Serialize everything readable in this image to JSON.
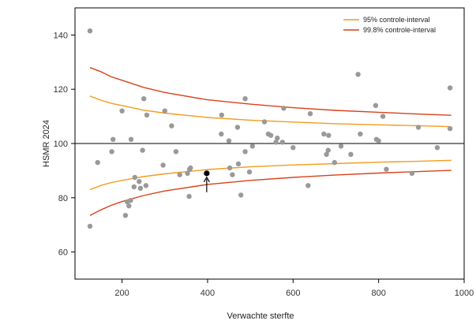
{
  "chart_data": {
    "type": "scatter",
    "title": "",
    "xlabel": "Verwachte sterfte",
    "ylabel": "HSMR 2024",
    "xlim": [
      90,
      1000
    ],
    "ylim": [
      50,
      150
    ],
    "xticks": [
      200,
      400,
      600,
      800,
      1000
    ],
    "yticks": [
      60,
      80,
      100,
      120,
      140
    ],
    "reference_line": 100,
    "legend_position": "top-right",
    "points": [
      {
        "x": 125,
        "y": 141.5
      },
      {
        "x": 125,
        "y": 69.5
      },
      {
        "x": 143,
        "y": 93
      },
      {
        "x": 176,
        "y": 97
      },
      {
        "x": 179,
        "y": 101.5
      },
      {
        "x": 200,
        "y": 112
      },
      {
        "x": 208,
        "y": 73.5
      },
      {
        "x": 212,
        "y": 78.5
      },
      {
        "x": 216,
        "y": 77
      },
      {
        "x": 220,
        "y": 79
      },
      {
        "x": 221,
        "y": 101.5
      },
      {
        "x": 228,
        "y": 84
      },
      {
        "x": 230,
        "y": 87.5
      },
      {
        "x": 240,
        "y": 86
      },
      {
        "x": 243,
        "y": 83.5
      },
      {
        "x": 248,
        "y": 97.5
      },
      {
        "x": 251,
        "y": 116.5
      },
      {
        "x": 256,
        "y": 84.5
      },
      {
        "x": 258,
        "y": 110.5
      },
      {
        "x": 296,
        "y": 92
      },
      {
        "x": 300,
        "y": 112
      },
      {
        "x": 316,
        "y": 106.5
      },
      {
        "x": 326,
        "y": 97
      },
      {
        "x": 335,
        "y": 88.5
      },
      {
        "x": 353,
        "y": 89
      },
      {
        "x": 357,
        "y": 80.5
      },
      {
        "x": 358,
        "y": 90.5
      },
      {
        "x": 360,
        "y": 91
      },
      {
        "x": 433,
        "y": 110.5
      },
      {
        "x": 432,
        "y": 103.5
      },
      {
        "x": 450,
        "y": 101
      },
      {
        "x": 452,
        "y": 91
      },
      {
        "x": 458,
        "y": 88.5
      },
      {
        "x": 470,
        "y": 106
      },
      {
        "x": 472,
        "y": 92.5
      },
      {
        "x": 478,
        "y": 81
      },
      {
        "x": 488,
        "y": 116.5
      },
      {
        "x": 488,
        "y": 97
      },
      {
        "x": 498,
        "y": 89.5
      },
      {
        "x": 505,
        "y": 99
      },
      {
        "x": 533,
        "y": 108
      },
      {
        "x": 542,
        "y": 103.5
      },
      {
        "x": 548,
        "y": 103
      },
      {
        "x": 560,
        "y": 100.5
      },
      {
        "x": 563,
        "y": 102
      },
      {
        "x": 575,
        "y": 100.5
      },
      {
        "x": 578,
        "y": 113
      },
      {
        "x": 600,
        "y": 98.5
      },
      {
        "x": 635,
        "y": 84.5
      },
      {
        "x": 640,
        "y": 111
      },
      {
        "x": 672,
        "y": 103.5
      },
      {
        "x": 678,
        "y": 96
      },
      {
        "x": 682,
        "y": 97.5
      },
      {
        "x": 683,
        "y": 103
      },
      {
        "x": 697,
        "y": 93
      },
      {
        "x": 712,
        "y": 99
      },
      {
        "x": 735,
        "y": 96
      },
      {
        "x": 752,
        "y": 125.5
      },
      {
        "x": 757,
        "y": 103.5
      },
      {
        "x": 793,
        "y": 114
      },
      {
        "x": 795,
        "y": 101.5
      },
      {
        "x": 800,
        "y": 101
      },
      {
        "x": 810,
        "y": 110
      },
      {
        "x": 818,
        "y": 90.5
      },
      {
        "x": 878,
        "y": 89
      },
      {
        "x": 893,
        "y": 106
      },
      {
        "x": 937,
        "y": 98.5
      },
      {
        "x": 967,
        "y": 105.5
      },
      {
        "x": 967,
        "y": 120.5
      }
    ],
    "highlight": {
      "x": 398,
      "y": 89
    },
    "series": [
      {
        "name": "95% controle-interval",
        "color": "#f39c1d",
        "upper": [
          [
            125,
            117.5
          ],
          [
            150,
            116
          ],
          [
            175,
            114.8
          ],
          [
            200,
            114
          ],
          [
            250,
            112.3
          ],
          [
            300,
            111.2
          ],
          [
            400,
            109.6
          ],
          [
            500,
            108.6
          ],
          [
            600,
            107.9
          ],
          [
            700,
            107.3
          ],
          [
            800,
            106.9
          ],
          [
            900,
            106.5
          ],
          [
            970,
            106.2
          ]
        ],
        "lower": [
          [
            125,
            83
          ],
          [
            150,
            84.5
          ],
          [
            175,
            85.6
          ],
          [
            200,
            86.4
          ],
          [
            250,
            87.8
          ],
          [
            300,
            88.8
          ],
          [
            400,
            90.4
          ],
          [
            500,
            91.4
          ],
          [
            600,
            92.1
          ],
          [
            700,
            92.6
          ],
          [
            800,
            93.1
          ],
          [
            900,
            93.5
          ],
          [
            970,
            93.8
          ]
        ]
      },
      {
        "name": "99.8% controle-interval",
        "color": "#d8411b",
        "upper": [
          [
            125,
            128
          ],
          [
            150,
            126.5
          ],
          [
            175,
            124.6
          ],
          [
            200,
            123.3
          ],
          [
            250,
            120.7
          ],
          [
            300,
            118.8
          ],
          [
            400,
            116.1
          ],
          [
            500,
            114.5
          ],
          [
            600,
            113.2
          ],
          [
            700,
            112.2
          ],
          [
            800,
            111.5
          ],
          [
            900,
            110.8
          ],
          [
            970,
            110.4
          ]
        ],
        "lower": [
          [
            125,
            73.5
          ],
          [
            150,
            75.5
          ],
          [
            175,
            77.2
          ],
          [
            200,
            78.6
          ],
          [
            250,
            80.8
          ],
          [
            300,
            82.5
          ],
          [
            400,
            84.9
          ],
          [
            500,
            86.4
          ],
          [
            600,
            87.5
          ],
          [
            700,
            88.4
          ],
          [
            800,
            89.1
          ],
          [
            900,
            89.7
          ],
          [
            970,
            90.1
          ]
        ]
      }
    ],
    "point_color": "#999999",
    "highlight_color": "#000000"
  }
}
